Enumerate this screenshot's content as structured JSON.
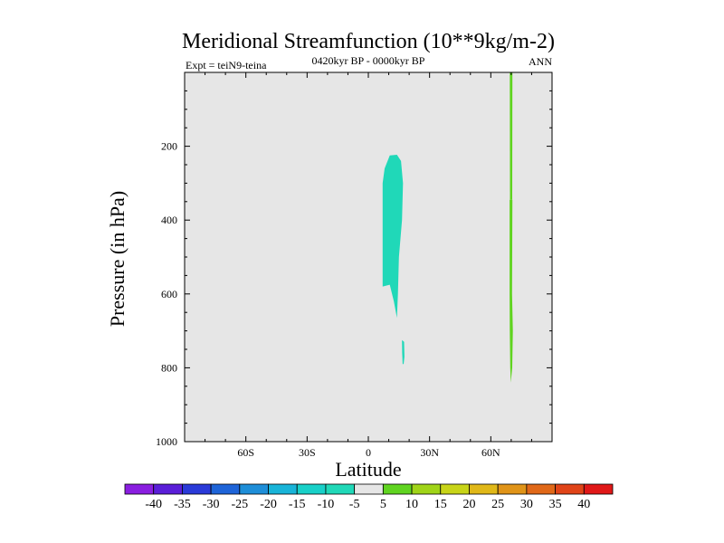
{
  "chart_data": {
    "type": "contour",
    "title": "Meridional Streamfunction (10**9kg/m-2)",
    "subtitle": "0420kyr BP - 0000kyr BP",
    "left_annotation": "Expt = teiN9-teina",
    "right_annotation": "ANN",
    "xlabel": "Latitude",
    "ylabel": "Pressure (in hPa)",
    "xlim": [
      -90,
      90
    ],
    "ylim": [
      1000,
      0
    ],
    "x_ticks": [
      {
        "value": -60,
        "label": "60S"
      },
      {
        "value": -30,
        "label": "30S"
      },
      {
        "value": 0,
        "label": "0"
      },
      {
        "value": 30,
        "label": "30N"
      },
      {
        "value": 60,
        "label": "60N"
      }
    ],
    "y_ticks": [
      {
        "value": 200,
        "label": "200"
      },
      {
        "value": 400,
        "label": "400"
      },
      {
        "value": 600,
        "label": "600"
      },
      {
        "value": 800,
        "label": "800"
      },
      {
        "value": 1000,
        "label": "1000"
      }
    ],
    "background_color": "#e6e6e6",
    "regions": [
      {
        "name": "negative-cell-main",
        "level_range": [
          -10,
          -5
        ],
        "color": "#20d8b8",
        "points": [
          [
            7,
            580
          ],
          [
            7,
            300
          ],
          [
            8,
            260
          ],
          [
            10.5,
            225
          ],
          [
            14,
            223
          ],
          [
            16,
            240
          ],
          [
            17,
            300
          ],
          [
            16.5,
            400
          ],
          [
            15,
            500
          ],
          [
            14.5,
            600
          ],
          [
            14,
            665
          ],
          [
            12.5,
            620
          ],
          [
            10.5,
            575
          ]
        ]
      },
      {
        "name": "negative-cell-small",
        "level_range": [
          -10,
          -5
        ],
        "color": "#20d8b8",
        "points": [
          [
            16.5,
            725
          ],
          [
            17.5,
            730
          ],
          [
            17.7,
            770
          ],
          [
            17.3,
            790
          ],
          [
            16.8,
            790
          ],
          [
            16.6,
            760
          ]
        ]
      },
      {
        "name": "positive-strip-upper",
        "level_range": [
          5,
          10
        ],
        "color": "#60d420",
        "points": [
          [
            69.3,
            0
          ],
          [
            70.6,
            0
          ],
          [
            70.5,
            345
          ],
          [
            69.4,
            345
          ]
        ]
      },
      {
        "name": "positive-strip-lower",
        "level_range": [
          5,
          10
        ],
        "color": "#60d420",
        "points": [
          [
            69.2,
            345
          ],
          [
            70.6,
            345
          ],
          [
            70.4,
            600
          ],
          [
            70.8,
            700
          ],
          [
            70.5,
            800
          ],
          [
            69.8,
            840
          ],
          [
            69.5,
            800
          ],
          [
            69.3,
            700
          ],
          [
            69.2,
            600
          ]
        ]
      }
    ],
    "colorbar": {
      "labels": [
        "-40",
        "-35",
        "-30",
        "-25",
        "-20",
        "-15",
        "-10",
        "-5",
        "5",
        "10",
        "15",
        "20",
        "25",
        "30",
        "35",
        "40"
      ],
      "colors": [
        "#8a1ee0",
        "#5a1ed8",
        "#2a3ad8",
        "#1e64d8",
        "#1e8ed8",
        "#18b4d8",
        "#18d0c8",
        "#20d8b8",
        "#e6e6e6",
        "#60d420",
        "#a0d418",
        "#c8d418",
        "#e0b818",
        "#e09418",
        "#e06818",
        "#e04418",
        "#e01818"
      ]
    }
  }
}
